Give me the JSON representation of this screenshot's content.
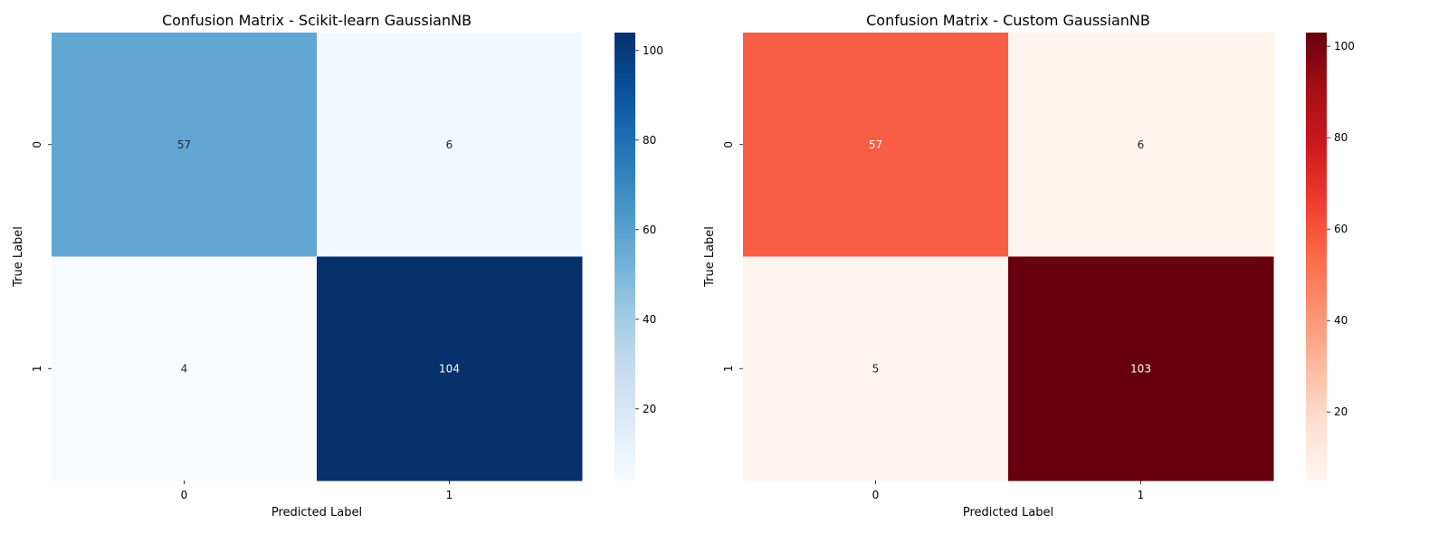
{
  "chart_data": [
    {
      "type": "heatmap",
      "title": "Confusion Matrix - Scikit-learn GaussianNB",
      "xlabel": "Predicted Label",
      "ylabel": "True Label",
      "x_categories": [
        "0",
        "1"
      ],
      "y_categories": [
        "0",
        "1"
      ],
      "values": [
        [
          57,
          6
        ],
        [
          4,
          104
        ]
      ],
      "colormap": "Blues",
      "color_low": "#f7fbff",
      "color_high": "#08306b",
      "color_range": [
        4,
        104
      ],
      "colorbar_ticks": [
        "20",
        "40",
        "60",
        "80",
        "100"
      ]
    },
    {
      "type": "heatmap",
      "title": "Confusion Matrix - Custom GaussianNB",
      "xlabel": "Predicted Label",
      "ylabel": "True Label",
      "x_categories": [
        "0",
        "1"
      ],
      "y_categories": [
        "0",
        "1"
      ],
      "values": [
        [
          57,
          6
        ],
        [
          5,
          103
        ]
      ],
      "colormap": "Reds",
      "color_low": "#fff5f0",
      "color_high": "#67000d",
      "color_range": [
        5,
        103
      ],
      "colorbar_ticks": [
        "20",
        "40",
        "60",
        "80",
        "100"
      ]
    }
  ]
}
